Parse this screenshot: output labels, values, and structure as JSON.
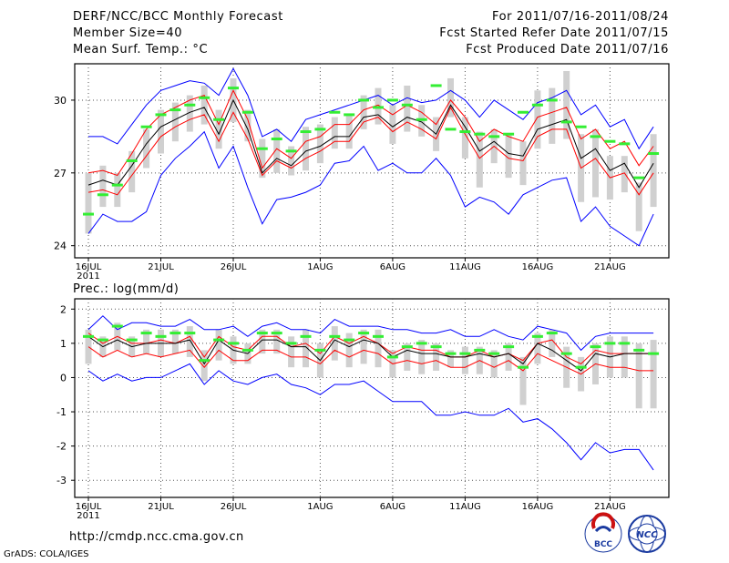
{
  "header": {
    "title": "DERF/NCC/BCC Monthly Forecast",
    "member_size": "Member Size=40",
    "variable": "Mean Surf. Temp.: °C",
    "period": "For 2011/07/16-2011/08/24",
    "start_date": "Fcst Started Refer Date 2011/07/15",
    "produced_date": "Fcst Produced Date 2011/07/16"
  },
  "second_panel_label": "Prec.: log(mm/d)",
  "footer": {
    "url": "http://cmdp.ncc.cma.gov.cn",
    "credit": "GrADS: COLA/IGES"
  },
  "logos": {
    "bcc": "BCC",
    "ncc": "NCC"
  },
  "colors": {
    "blue": "#0000ff",
    "red": "#ff0000",
    "black": "#000000",
    "green": "#33ee33",
    "gray": "#d0d0d0"
  },
  "chart_data": [
    {
      "type": "line",
      "title": "Mean Surf. Temp.",
      "x": [
        "16JUL",
        "17JUL",
        "18JUL",
        "19JUL",
        "20JUL",
        "21JUL",
        "22JUL",
        "23JUL",
        "24JUL",
        "25JUL",
        "26JUL",
        "27JUL",
        "28JUL",
        "29JUL",
        "30JUL",
        "31JUL",
        "1AUG",
        "2AUG",
        "3AUG",
        "4AUG",
        "5AUG",
        "6AUG",
        "7AUG",
        "8AUG",
        "9AUG",
        "10AUG",
        "11AUG",
        "12AUG",
        "13AUG",
        "14AUG",
        "15AUG",
        "16AUG",
        "17AUG",
        "18AUG",
        "19AUG",
        "20AUG",
        "21AUG",
        "22AUG",
        "23AUG",
        "24AUG"
      ],
      "x_tick_labels": [
        "16JUL",
        "21JUL",
        "26JUL",
        "1AUG",
        "6AUG",
        "11AUG",
        "16AUG",
        "21AUG"
      ],
      "x_year_label": "2011",
      "y_ticks": [
        24,
        27,
        30
      ],
      "ylim": [
        23.5,
        31.5
      ],
      "series": [
        {
          "name": "max",
          "color": "blue",
          "values": [
            28.5,
            28.5,
            28.2,
            29.0,
            29.8,
            30.4,
            30.6,
            30.8,
            30.7,
            30.2,
            31.3,
            30.2,
            28.5,
            28.8,
            28.3,
            29.2,
            29.4,
            29.6,
            29.8,
            30.0,
            30.2,
            29.8,
            30.1,
            29.9,
            30.0,
            30.4,
            30.0,
            29.3,
            30.0,
            29.6,
            29.2,
            29.9,
            30.1,
            30.4,
            29.4,
            29.8,
            28.9,
            29.2,
            28.0,
            28.9
          ]
        },
        {
          "name": "upper",
          "color": "red",
          "values": [
            27.0,
            27.1,
            26.9,
            27.8,
            28.8,
            29.4,
            29.7,
            30.0,
            30.2,
            29.0,
            30.4,
            29.2,
            27.2,
            28.0,
            27.6,
            28.3,
            28.5,
            29.0,
            29.0,
            29.6,
            29.8,
            29.4,
            29.8,
            29.5,
            29.0,
            30.0,
            29.3,
            28.3,
            28.8,
            28.5,
            28.3,
            29.3,
            29.5,
            29.7,
            28.4,
            28.8,
            28.0,
            28.3,
            27.3,
            28.1
          ]
        },
        {
          "name": "mean",
          "color": "black",
          "values": [
            26.5,
            26.7,
            26.5,
            27.3,
            28.2,
            28.9,
            29.2,
            29.5,
            29.7,
            28.6,
            30.0,
            28.8,
            27.0,
            27.6,
            27.3,
            27.9,
            28.1,
            28.5,
            28.5,
            29.3,
            29.4,
            28.9,
            29.3,
            29.1,
            28.6,
            29.8,
            28.9,
            27.9,
            28.3,
            27.8,
            27.7,
            28.8,
            29.0,
            29.2,
            27.6,
            28.0,
            27.1,
            27.4,
            26.4,
            27.4
          ]
        },
        {
          "name": "lower",
          "color": "red",
          "values": [
            26.2,
            26.3,
            26.1,
            26.9,
            27.7,
            28.5,
            28.9,
            29.2,
            29.4,
            28.3,
            29.5,
            28.4,
            26.9,
            27.5,
            27.2,
            27.6,
            27.9,
            28.3,
            28.3,
            29.1,
            29.3,
            28.7,
            29.1,
            28.8,
            28.4,
            29.7,
            28.6,
            27.6,
            28.1,
            27.6,
            27.5,
            28.5,
            28.8,
            28.8,
            27.2,
            27.6,
            26.8,
            27.0,
            26.1,
            27.0
          ]
        },
        {
          "name": "min",
          "color": "blue",
          "values": [
            24.5,
            25.3,
            25.0,
            25.0,
            25.4,
            26.9,
            27.6,
            28.1,
            28.7,
            27.2,
            28.1,
            26.4,
            24.9,
            25.9,
            26.0,
            26.2,
            26.5,
            27.4,
            27.5,
            28.1,
            27.1,
            27.4,
            27.0,
            27.0,
            27.6,
            26.9,
            25.6,
            26.0,
            25.8,
            25.3,
            26.1,
            26.4,
            26.7,
            26.8,
            25.0,
            25.6,
            24.8,
            24.4,
            24.0,
            25.3
          ]
        },
        {
          "name": "ensemble",
          "color": "green",
          "values": [
            25.3,
            26.1,
            26.5,
            27.5,
            28.9,
            29.4,
            29.6,
            29.8,
            30.1,
            29.2,
            30.5,
            29.5,
            28.0,
            28.4,
            27.9,
            28.7,
            28.8,
            29.5,
            29.4,
            30.0,
            29.7,
            30.0,
            29.8,
            29.2,
            30.6,
            28.8,
            28.7,
            28.6,
            28.5,
            28.6,
            29.5,
            29.8,
            30.0,
            29.1,
            28.9,
            28.5,
            28.3,
            28.2,
            26.8,
            27.8
          ]
        },
        {
          "name": "box_low",
          "color": "gray",
          "values": [
            24.5,
            25.6,
            25.6,
            26.2,
            27.2,
            27.8,
            28.3,
            28.7,
            29.0,
            28.0,
            29.1,
            28.3,
            26.8,
            27.0,
            26.9,
            27.1,
            27.4,
            28.0,
            28.0,
            28.8,
            29.0,
            28.2,
            28.7,
            28.5,
            27.9,
            29.3,
            27.6,
            26.4,
            27.4,
            26.8,
            26.5,
            28.0,
            28.2,
            28.4,
            25.8,
            26.0,
            25.9,
            26.2,
            24.6,
            25.6
          ]
        },
        {
          "name": "box_high",
          "color": "gray",
          "values": [
            27.0,
            27.3,
            27.0,
            27.9,
            28.8,
            29.6,
            29.9,
            30.2,
            30.6,
            29.6,
            30.9,
            29.6,
            28.4,
            28.8,
            28.1,
            28.9,
            29.0,
            29.3,
            29.4,
            30.2,
            30.5,
            29.8,
            30.6,
            29.8,
            29.3,
            30.9,
            29.3,
            28.7,
            28.8,
            28.6,
            28.3,
            30.4,
            30.5,
            31.2,
            28.6,
            28.8,
            27.7,
            27.7,
            26.6,
            28.6
          ]
        }
      ]
    },
    {
      "type": "line",
      "title": "Prec.: log(mm/d)",
      "x": [
        "16JUL",
        "17JUL",
        "18JUL",
        "19JUL",
        "20JUL",
        "21JUL",
        "22JUL",
        "23JUL",
        "24JUL",
        "25JUL",
        "26JUL",
        "27JUL",
        "28JUL",
        "29JUL",
        "30JUL",
        "31JUL",
        "1AUG",
        "2AUG",
        "3AUG",
        "4AUG",
        "5AUG",
        "6AUG",
        "7AUG",
        "8AUG",
        "9AUG",
        "10AUG",
        "11AUG",
        "12AUG",
        "13AUG",
        "14AUG",
        "15AUG",
        "16AUG",
        "17AUG",
        "18AUG",
        "19AUG",
        "20AUG",
        "21AUG",
        "22AUG",
        "23AUG",
        "24AUG"
      ],
      "x_tick_labels": [
        "16JUL",
        "21JUL",
        "26JUL",
        "1AUG",
        "6AUG",
        "11AUG",
        "16AUG",
        "21AUG"
      ],
      "x_year_label": "2011",
      "y_ticks": [
        -3,
        -2,
        -1,
        0,
        1,
        2
      ],
      "ylim": [
        -3.5,
        2.3
      ],
      "series": [
        {
          "name": "max",
          "color": "blue",
          "values": [
            1.4,
            1.8,
            1.4,
            1.6,
            1.6,
            1.5,
            1.5,
            1.7,
            1.4,
            1.4,
            1.5,
            1.2,
            1.5,
            1.6,
            1.4,
            1.4,
            1.3,
            1.7,
            1.5,
            1.5,
            1.5,
            1.4,
            1.4,
            1.3,
            1.3,
            1.4,
            1.2,
            1.2,
            1.4,
            1.2,
            1.1,
            1.5,
            1.4,
            1.3,
            0.8,
            1.2,
            1.3,
            1.3,
            1.3,
            1.3
          ]
        },
        {
          "name": "upper",
          "color": "red",
          "values": [
            1.3,
            1.0,
            1.2,
            1.0,
            1.0,
            1.1,
            1.0,
            1.2,
            0.6,
            1.2,
            0.9,
            0.8,
            1.2,
            1.2,
            0.9,
            1.0,
            0.7,
            1.2,
            1.0,
            1.2,
            1.0,
            0.7,
            0.9,
            0.8,
            0.8,
            0.6,
            0.6,
            0.8,
            0.6,
            0.7,
            0.5,
            1.0,
            1.1,
            0.6,
            0.4,
            0.8,
            0.7,
            0.7,
            0.7,
            0.7
          ]
        },
        {
          "name": "mean",
          "color": "black",
          "values": [
            1.2,
            0.9,
            1.1,
            0.9,
            1.0,
            1.0,
            1.0,
            1.1,
            0.4,
            1.1,
            0.8,
            0.7,
            1.1,
            1.1,
            0.9,
            0.9,
            0.5,
            1.1,
            0.9,
            1.1,
            1.0,
            0.6,
            0.8,
            0.7,
            0.7,
            0.6,
            0.6,
            0.7,
            0.6,
            0.7,
            0.4,
            1.0,
            0.8,
            0.5,
            0.2,
            0.7,
            0.6,
            0.7,
            0.7,
            0.7
          ]
        },
        {
          "name": "lower",
          "color": "red",
          "values": [
            0.9,
            0.6,
            0.8,
            0.6,
            0.7,
            0.6,
            0.7,
            0.8,
            0.3,
            0.8,
            0.5,
            0.5,
            0.8,
            0.8,
            0.6,
            0.6,
            0.4,
            0.8,
            0.6,
            0.8,
            0.7,
            0.4,
            0.5,
            0.4,
            0.5,
            0.3,
            0.3,
            0.5,
            0.3,
            0.5,
            0.2,
            0.7,
            0.5,
            0.3,
            0.1,
            0.4,
            0.3,
            0.3,
            0.2,
            0.2
          ]
        },
        {
          "name": "min",
          "color": "blue",
          "values": [
            0.2,
            -0.1,
            0.1,
            -0.1,
            0.0,
            0.0,
            0.2,
            0.4,
            -0.2,
            0.2,
            -0.1,
            -0.2,
            0.0,
            0.1,
            -0.2,
            -0.3,
            -0.5,
            -0.2,
            -0.2,
            -0.1,
            -0.4,
            -0.7,
            -0.7,
            -0.7,
            -1.1,
            -1.1,
            -1.0,
            -1.1,
            -1.1,
            -0.9,
            -1.3,
            -1.2,
            -1.5,
            -1.9,
            -2.4,
            -1.9,
            -2.2,
            -2.1,
            -2.1,
            -2.7
          ]
        },
        {
          "name": "ensemble",
          "color": "green",
          "values": [
            1.2,
            1.1,
            1.5,
            1.1,
            1.3,
            1.2,
            1.3,
            1.3,
            0.5,
            1.1,
            1.0,
            0.8,
            1.3,
            1.3,
            1.0,
            1.2,
            0.8,
            1.2,
            1.1,
            1.3,
            1.2,
            0.6,
            0.9,
            1.0,
            0.9,
            0.7,
            0.7,
            0.8,
            0.7,
            0.9,
            0.3,
            1.2,
            1.3,
            0.7,
            0.3,
            0.9,
            1.0,
            1.0,
            0.8,
            0.7
          ]
        },
        {
          "name": "box_low",
          "color": "gray",
          "values": [
            0.4,
            0.6,
            0.8,
            0.6,
            0.7,
            0.6,
            0.7,
            0.6,
            -0.1,
            0.5,
            0.4,
            0.4,
            0.7,
            0.7,
            0.3,
            0.3,
            0.0,
            0.5,
            0.3,
            0.4,
            0.3,
            0.0,
            0.2,
            0.1,
            0.2,
            0.3,
            0.1,
            0.1,
            0.0,
            0.2,
            -0.8,
            0.4,
            0.6,
            -0.3,
            -0.4,
            -0.2,
            0.0,
            0.0,
            -0.9,
            -0.9
          ]
        },
        {
          "name": "box_high",
          "color": "gray",
          "values": [
            1.4,
            1.2,
            1.6,
            1.2,
            1.4,
            1.4,
            1.4,
            1.5,
            0.8,
            1.4,
            1.2,
            1.0,
            1.4,
            1.4,
            1.2,
            1.4,
            1.0,
            1.5,
            1.3,
            1.4,
            1.4,
            0.8,
            1.0,
            1.1,
            1.0,
            0.8,
            0.9,
            0.9,
            0.8,
            1.0,
            0.6,
            1.3,
            1.4,
            0.9,
            0.6,
            1.0,
            1.2,
            1.2,
            1.0,
            1.1
          ]
        }
      ]
    }
  ]
}
